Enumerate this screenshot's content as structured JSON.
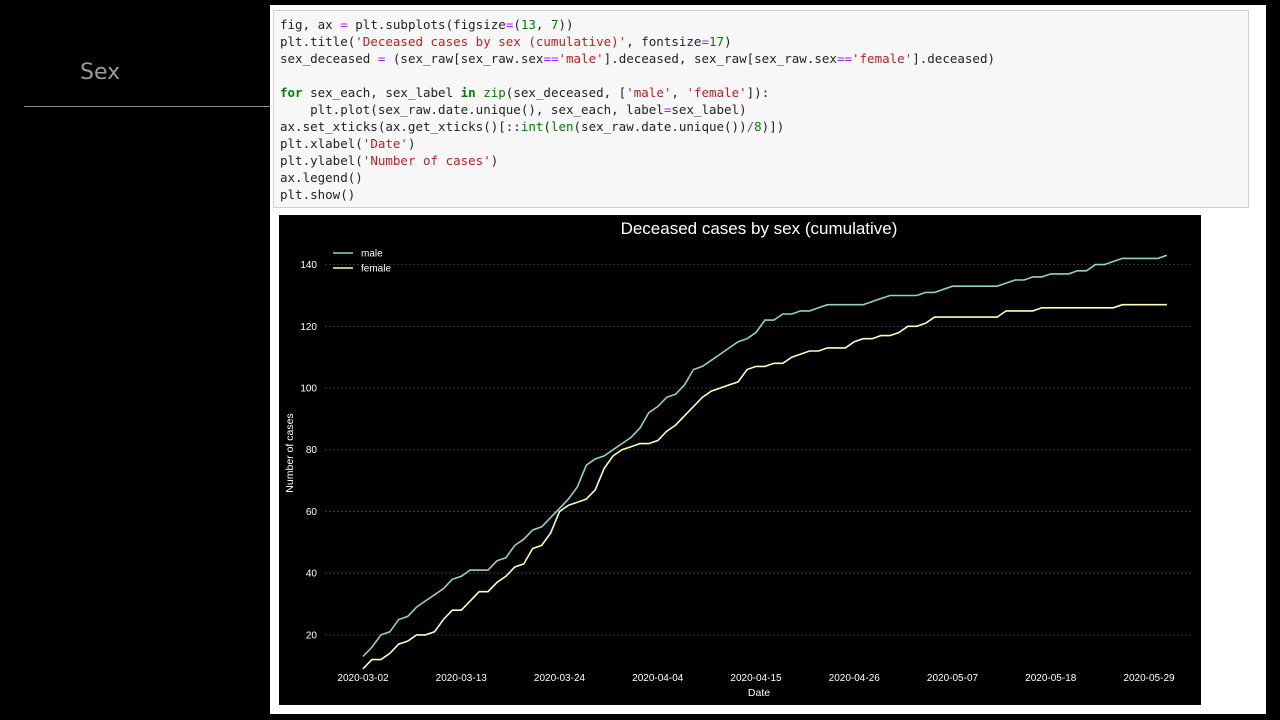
{
  "slide": {
    "title": "Sex"
  },
  "code_lines": [
    [
      {
        "t": "fig, ax ",
        "c": ""
      },
      {
        "t": "=",
        "c": "op"
      },
      {
        "t": " plt.subplots(figsize",
        "c": ""
      },
      {
        "t": "=",
        "c": "op"
      },
      {
        "t": "(",
        "c": ""
      },
      {
        "t": "13",
        "c": "num"
      },
      {
        "t": ", ",
        "c": ""
      },
      {
        "t": "7",
        "c": "num"
      },
      {
        "t": "))",
        "c": ""
      }
    ],
    [
      {
        "t": "plt.title(",
        "c": ""
      },
      {
        "t": "'Deceased cases by sex (cumulative)'",
        "c": "str"
      },
      {
        "t": ", fontsize",
        "c": ""
      },
      {
        "t": "=",
        "c": "op"
      },
      {
        "t": "17",
        "c": "num"
      },
      {
        "t": ")",
        "c": ""
      }
    ],
    [
      {
        "t": "sex_deceased ",
        "c": ""
      },
      {
        "t": "=",
        "c": "op"
      },
      {
        "t": " (sex_raw[sex_raw.sex",
        "c": ""
      },
      {
        "t": "==",
        "c": "op"
      },
      {
        "t": "'male'",
        "c": "str"
      },
      {
        "t": "].deceased, sex_raw[sex_raw.sex",
        "c": ""
      },
      {
        "t": "==",
        "c": "op"
      },
      {
        "t": "'female'",
        "c": "str"
      },
      {
        "t": "].deceased)",
        "c": ""
      }
    ],
    [],
    [
      {
        "t": "for",
        "c": "kw"
      },
      {
        "t": " sex_each, sex_label ",
        "c": ""
      },
      {
        "t": "in",
        "c": "kw"
      },
      {
        "t": " ",
        "c": ""
      },
      {
        "t": "zip",
        "c": "bi"
      },
      {
        "t": "(sex_deceased, [",
        "c": ""
      },
      {
        "t": "'male'",
        "c": "str"
      },
      {
        "t": ", ",
        "c": ""
      },
      {
        "t": "'female'",
        "c": "str"
      },
      {
        "t": "]):",
        "c": ""
      }
    ],
    [
      {
        "t": "    plt.plot(sex_raw.date.unique(), sex_each, label",
        "c": ""
      },
      {
        "t": "=",
        "c": "op"
      },
      {
        "t": "sex_label)",
        "c": ""
      }
    ],
    [
      {
        "t": "ax.set_xticks(ax.get_xticks()[::",
        "c": ""
      },
      {
        "t": "int",
        "c": "bi"
      },
      {
        "t": "(",
        "c": ""
      },
      {
        "t": "len",
        "c": "bi"
      },
      {
        "t": "(sex_raw.date.unique())",
        "c": ""
      },
      {
        "t": "/",
        "c": "op"
      },
      {
        "t": "8",
        "c": "num"
      },
      {
        "t": ")])",
        "c": ""
      }
    ],
    [
      {
        "t": "plt.xlabel(",
        "c": ""
      },
      {
        "t": "'Date'",
        "c": "str"
      },
      {
        "t": ")",
        "c": ""
      }
    ],
    [
      {
        "t": "plt.ylabel(",
        "c": ""
      },
      {
        "t": "'Number of cases'",
        "c": "str"
      },
      {
        "t": ")",
        "c": ""
      }
    ],
    [
      {
        "t": "ax.legend()",
        "c": ""
      }
    ],
    [
      {
        "t": "plt.show()",
        "c": ""
      }
    ]
  ],
  "colors": {
    "male": "#8dd3c7",
    "female": "#ffffb3",
    "grid": "#444444",
    "text": "#ffffff"
  },
  "chart_data": {
    "type": "line",
    "title": "Deceased cases by sex (cumulative)",
    "xlabel": "Date",
    "ylabel": "Number of cases",
    "legend": "upper-left",
    "grid": true,
    "x_tick_labels": [
      "2020-03-02",
      "2020-03-13",
      "2020-03-24",
      "2020-04-04",
      "2020-04-15",
      "2020-04-26",
      "2020-05-07",
      "2020-05-18",
      "2020-05-29"
    ],
    "x_tick_index": [
      0,
      11,
      22,
      33,
      44,
      55,
      66,
      77,
      88
    ],
    "y_ticks": [
      20,
      40,
      60,
      80,
      100,
      120,
      140
    ],
    "ylim": [
      7,
      147
    ],
    "series": [
      {
        "name": "male",
        "values": [
          13,
          16,
          20,
          21,
          25,
          26,
          29,
          31,
          33,
          35,
          38,
          39,
          41,
          41,
          41,
          44,
          45,
          49,
          51,
          54,
          55,
          58,
          61,
          64,
          68,
          75,
          77,
          78,
          80,
          82,
          84,
          87,
          92,
          94,
          97,
          98,
          101,
          106,
          107,
          109,
          111,
          113,
          115,
          116,
          118,
          122,
          122,
          124,
          124,
          125,
          125,
          126,
          127,
          127,
          127,
          127,
          127,
          128,
          129,
          130,
          130,
          130,
          130,
          131,
          131,
          132,
          133,
          133,
          133,
          133,
          133,
          133,
          134,
          135,
          135,
          136,
          136,
          137,
          137,
          137,
          138,
          138,
          140,
          140,
          141,
          142,
          142,
          142,
          142,
          142,
          143
        ]
      },
      {
        "name": "female",
        "values": [
          9,
          12,
          12,
          14,
          17,
          18,
          20,
          20,
          21,
          25,
          28,
          28,
          31,
          34,
          34,
          37,
          39,
          42,
          43,
          48,
          49,
          53,
          60,
          62,
          63,
          64,
          67,
          74,
          78,
          80,
          81,
          82,
          82,
          83,
          86,
          88,
          91,
          94,
          97,
          99,
          100,
          101,
          102,
          106,
          107,
          107,
          108,
          108,
          110,
          111,
          112,
          112,
          113,
          113,
          113,
          115,
          116,
          116,
          117,
          117,
          118,
          120,
          120,
          121,
          123,
          123,
          123,
          123,
          123,
          123,
          123,
          123,
          125,
          125,
          125,
          125,
          126,
          126,
          126,
          126,
          126,
          126,
          126,
          126,
          126,
          127,
          127,
          127,
          127,
          127,
          127
        ]
      }
    ]
  }
}
